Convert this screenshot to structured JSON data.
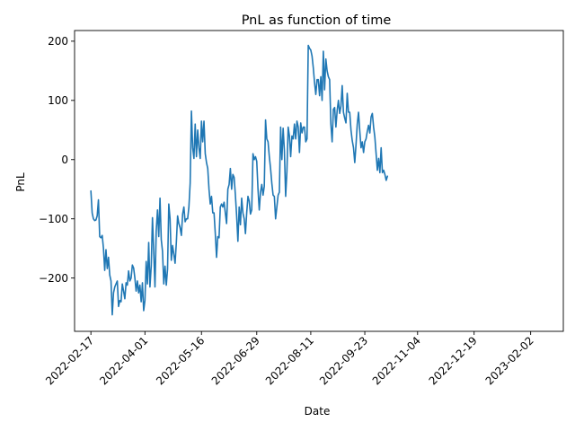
{
  "chart_data": {
    "type": "line",
    "title": "PnL as function of time",
    "xlabel": "Date",
    "ylabel": "PnL",
    "xlim": [
      "2022-02-04",
      "2023-02-28"
    ],
    "ylim": [
      -290,
      218
    ],
    "grid": false,
    "line_color": "#1f77b4",
    "x_ticks": [
      "2022-02-17",
      "2022-04-01",
      "2022-05-16",
      "2022-06-29",
      "2022-08-11",
      "2022-09-23",
      "2022-11-04",
      "2022-12-19",
      "2023-02-02"
    ],
    "y_ticks": [
      -200,
      -100,
      0,
      100,
      200
    ],
    "y_tick_labels": [
      "−200",
      "−100",
      "0",
      "100",
      "200"
    ],
    "series": [
      {
        "points": [
          [
            "2022-02-17",
            -53
          ],
          [
            "2022-02-18",
            -90
          ],
          [
            "2022-02-19",
            -100
          ],
          [
            "2022-02-20",
            -103
          ],
          [
            "2022-02-21",
            -102
          ],
          [
            "2022-02-22",
            -95
          ],
          [
            "2022-02-23",
            -68
          ],
          [
            "2022-02-24",
            -130
          ],
          [
            "2022-02-25",
            -132
          ],
          [
            "2022-02-26",
            -128
          ],
          [
            "2022-02-27",
            -150
          ],
          [
            "2022-02-28",
            -187
          ],
          [
            "2022-03-01",
            -152
          ],
          [
            "2022-03-02",
            -184
          ],
          [
            "2022-03-03",
            -165
          ],
          [
            "2022-03-04",
            -195
          ],
          [
            "2022-03-05",
            -205
          ],
          [
            "2022-03-06",
            -262
          ],
          [
            "2022-03-07",
            -225
          ],
          [
            "2022-03-08",
            -215
          ],
          [
            "2022-03-09",
            -210
          ],
          [
            "2022-03-10",
            -205
          ],
          [
            "2022-03-11",
            -248
          ],
          [
            "2022-03-12",
            -238
          ],
          [
            "2022-03-13",
            -240
          ],
          [
            "2022-03-14",
            -210
          ],
          [
            "2022-03-15",
            -222
          ],
          [
            "2022-03-16",
            -235
          ],
          [
            "2022-03-17",
            -208
          ],
          [
            "2022-03-18",
            -212
          ],
          [
            "2022-03-19",
            -188
          ],
          [
            "2022-03-20",
            -205
          ],
          [
            "2022-03-21",
            -200
          ],
          [
            "2022-03-22",
            -178
          ],
          [
            "2022-03-23",
            -183
          ],
          [
            "2022-03-24",
            -200
          ],
          [
            "2022-03-25",
            -222
          ],
          [
            "2022-03-26",
            -205
          ],
          [
            "2022-03-27",
            -225
          ],
          [
            "2022-03-28",
            -212
          ],
          [
            "2022-03-29",
            -240
          ],
          [
            "2022-03-30",
            -208
          ],
          [
            "2022-03-31",
            -255
          ],
          [
            "2022-04-01",
            -238
          ],
          [
            "2022-04-02",
            -172
          ],
          [
            "2022-04-03",
            -210
          ],
          [
            "2022-04-04",
            -140
          ],
          [
            "2022-04-05",
            -215
          ],
          [
            "2022-04-06",
            -180
          ],
          [
            "2022-04-07",
            -98
          ],
          [
            "2022-04-08",
            -155
          ],
          [
            "2022-04-09",
            -215
          ],
          [
            "2022-04-10",
            -120
          ],
          [
            "2022-04-11",
            -85
          ],
          [
            "2022-04-12",
            -130
          ],
          [
            "2022-04-13",
            -65
          ],
          [
            "2022-04-14",
            -135
          ],
          [
            "2022-04-15",
            -155
          ],
          [
            "2022-04-16",
            -210
          ],
          [
            "2022-04-17",
            -180
          ],
          [
            "2022-04-18",
            -212
          ],
          [
            "2022-04-19",
            -185
          ],
          [
            "2022-04-20",
            -75
          ],
          [
            "2022-04-21",
            -100
          ],
          [
            "2022-04-22",
            -170
          ],
          [
            "2022-04-23",
            -145
          ],
          [
            "2022-04-24",
            -160
          ],
          [
            "2022-04-25",
            -175
          ],
          [
            "2022-04-26",
            -140
          ],
          [
            "2022-04-27",
            -95
          ],
          [
            "2022-04-28",
            -108
          ],
          [
            "2022-04-29",
            -115
          ],
          [
            "2022-04-30",
            -128
          ],
          [
            "2022-05-01",
            -92
          ],
          [
            "2022-05-02",
            -80
          ],
          [
            "2022-05-03",
            -105
          ],
          [
            "2022-05-04",
            -100
          ],
          [
            "2022-05-05",
            -100
          ],
          [
            "2022-05-06",
            -80
          ],
          [
            "2022-05-07",
            -40
          ],
          [
            "2022-05-08",
            82
          ],
          [
            "2022-05-09",
            20
          ],
          [
            "2022-05-10",
            2
          ],
          [
            "2022-05-11",
            60
          ],
          [
            "2022-05-12",
            5
          ],
          [
            "2022-05-13",
            50
          ],
          [
            "2022-05-14",
            20
          ],
          [
            "2022-05-15",
            2
          ],
          [
            "2022-05-16",
            65
          ],
          [
            "2022-05-17",
            30
          ],
          [
            "2022-05-18",
            65
          ],
          [
            "2022-05-19",
            10
          ],
          [
            "2022-05-20",
            -5
          ],
          [
            "2022-05-21",
            -15
          ],
          [
            "2022-05-22",
            -50
          ],
          [
            "2022-05-23",
            -75
          ],
          [
            "2022-05-24",
            -62
          ],
          [
            "2022-05-25",
            -90
          ],
          [
            "2022-05-26",
            -90
          ],
          [
            "2022-05-27",
            -125
          ],
          [
            "2022-05-28",
            -165
          ],
          [
            "2022-05-29",
            -130
          ],
          [
            "2022-05-30",
            -132
          ],
          [
            "2022-05-31",
            -80
          ],
          [
            "2022-06-01",
            -75
          ],
          [
            "2022-06-02",
            -80
          ],
          [
            "2022-06-03",
            -72
          ],
          [
            "2022-06-04",
            -90
          ],
          [
            "2022-06-05",
            -108
          ],
          [
            "2022-06-06",
            -50
          ],
          [
            "2022-06-07",
            -42
          ],
          [
            "2022-06-08",
            -15
          ],
          [
            "2022-06-09",
            -50
          ],
          [
            "2022-06-10",
            -25
          ],
          [
            "2022-06-11",
            -30
          ],
          [
            "2022-06-12",
            -60
          ],
          [
            "2022-06-13",
            -95
          ],
          [
            "2022-06-14",
            -138
          ],
          [
            "2022-06-15",
            -80
          ],
          [
            "2022-06-16",
            -110
          ],
          [
            "2022-06-17",
            -65
          ],
          [
            "2022-06-18",
            -90
          ],
          [
            "2022-06-19",
            -100
          ],
          [
            "2022-06-20",
            -125
          ],
          [
            "2022-06-21",
            -90
          ],
          [
            "2022-06-22",
            -62
          ],
          [
            "2022-06-23",
            -70
          ],
          [
            "2022-06-24",
            -92
          ],
          [
            "2022-06-25",
            -85
          ],
          [
            "2022-06-26",
            10
          ],
          [
            "2022-06-27",
            0
          ],
          [
            "2022-06-28",
            5
          ],
          [
            "2022-06-29",
            -3
          ],
          [
            "2022-06-30",
            -50
          ],
          [
            "2022-07-01",
            -85
          ],
          [
            "2022-07-02",
            -55
          ],
          [
            "2022-07-03",
            -42
          ],
          [
            "2022-07-04",
            -60
          ],
          [
            "2022-07-05",
            -45
          ],
          [
            "2022-07-06",
            67
          ],
          [
            "2022-07-07",
            35
          ],
          [
            "2022-07-08",
            30
          ],
          [
            "2022-07-09",
            5
          ],
          [
            "2022-07-10",
            -15
          ],
          [
            "2022-07-11",
            -40
          ],
          [
            "2022-07-12",
            -60
          ],
          [
            "2022-07-13",
            -62
          ],
          [
            "2022-07-14",
            -100
          ],
          [
            "2022-07-15",
            -80
          ],
          [
            "2022-07-16",
            -60
          ],
          [
            "2022-07-17",
            -55
          ],
          [
            "2022-07-18",
            55
          ],
          [
            "2022-07-19",
            0
          ],
          [
            "2022-07-20",
            53
          ],
          [
            "2022-07-21",
            15
          ],
          [
            "2022-07-22",
            -62
          ],
          [
            "2022-07-23",
            -20
          ],
          [
            "2022-07-24",
            55
          ],
          [
            "2022-07-25",
            40
          ],
          [
            "2022-07-26",
            5
          ],
          [
            "2022-07-27",
            40
          ],
          [
            "2022-07-28",
            35
          ],
          [
            "2022-07-29",
            60
          ],
          [
            "2022-07-30",
            35
          ],
          [
            "2022-07-31",
            65
          ],
          [
            "2022-08-01",
            55
          ],
          [
            "2022-08-02",
            12
          ],
          [
            "2022-08-03",
            62
          ],
          [
            "2022-08-04",
            45
          ],
          [
            "2022-08-05",
            55
          ],
          [
            "2022-08-06",
            55
          ],
          [
            "2022-08-07",
            30
          ],
          [
            "2022-08-08",
            35
          ],
          [
            "2022-08-09",
            193
          ],
          [
            "2022-08-10",
            188
          ],
          [
            "2022-08-11",
            185
          ],
          [
            "2022-08-12",
            175
          ],
          [
            "2022-08-13",
            155
          ],
          [
            "2022-08-14",
            130
          ],
          [
            "2022-08-15",
            110
          ],
          [
            "2022-08-16",
            135
          ],
          [
            "2022-08-17",
            135
          ],
          [
            "2022-08-18",
            108
          ],
          [
            "2022-08-19",
            140
          ],
          [
            "2022-08-20",
            100
          ],
          [
            "2022-08-21",
            183
          ],
          [
            "2022-08-22",
            118
          ],
          [
            "2022-08-23",
            170
          ],
          [
            "2022-08-24",
            150
          ],
          [
            "2022-08-25",
            140
          ],
          [
            "2022-08-26",
            135
          ],
          [
            "2022-08-27",
            60
          ],
          [
            "2022-08-28",
            30
          ],
          [
            "2022-08-29",
            85
          ],
          [
            "2022-08-30",
            88
          ],
          [
            "2022-08-31",
            55
          ],
          [
            "2022-09-01",
            83
          ],
          [
            "2022-09-02",
            100
          ],
          [
            "2022-09-03",
            78
          ],
          [
            "2022-09-04",
            90
          ],
          [
            "2022-09-05",
            125
          ],
          [
            "2022-09-06",
            80
          ],
          [
            "2022-09-07",
            70
          ],
          [
            "2022-09-08",
            62
          ],
          [
            "2022-09-09",
            112
          ],
          [
            "2022-09-10",
            80
          ],
          [
            "2022-09-11",
            80
          ],
          [
            "2022-09-12",
            50
          ],
          [
            "2022-09-13",
            32
          ],
          [
            "2022-09-14",
            20
          ],
          [
            "2022-09-15",
            -5
          ],
          [
            "2022-09-16",
            25
          ],
          [
            "2022-09-17",
            60
          ],
          [
            "2022-09-18",
            80
          ],
          [
            "2022-09-19",
            48
          ],
          [
            "2022-09-20",
            20
          ],
          [
            "2022-09-21",
            30
          ],
          [
            "2022-09-22",
            12
          ],
          [
            "2022-09-23",
            30
          ],
          [
            "2022-09-24",
            35
          ],
          [
            "2022-09-25",
            48
          ],
          [
            "2022-09-26",
            58
          ],
          [
            "2022-09-27",
            45
          ],
          [
            "2022-09-28",
            72
          ],
          [
            "2022-09-29",
            78
          ],
          [
            "2022-09-30",
            55
          ],
          [
            "2022-10-01",
            38
          ],
          [
            "2022-10-02",
            10
          ],
          [
            "2022-10-03",
            -18
          ],
          [
            "2022-10-04",
            2
          ],
          [
            "2022-10-05",
            -22
          ],
          [
            "2022-10-06",
            20
          ],
          [
            "2022-10-07",
            -22
          ],
          [
            "2022-10-08",
            -18
          ],
          [
            "2022-10-09",
            -25
          ],
          [
            "2022-10-10",
            -35
          ],
          [
            "2022-10-11",
            -28
          ]
        ]
      }
    ]
  }
}
